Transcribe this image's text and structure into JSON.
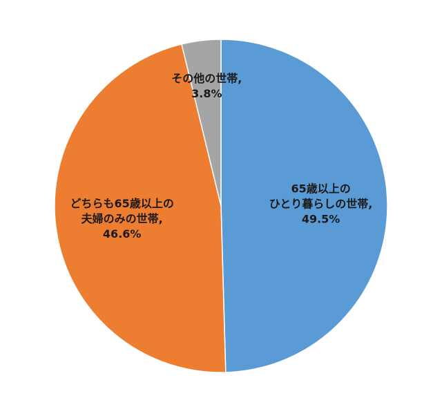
{
  "chart_data": {
    "type": "pie",
    "categories": [
      [
        "65歳以上の",
        "ひとり暮らしの世帯,"
      ],
      [
        "どちらも65歳以上の",
        "夫婦のみの世帯,"
      ],
      [
        "その他の世帯,"
      ]
    ],
    "values": [
      49.5,
      46.6,
      3.8
    ],
    "value_labels": [
      "49.5%",
      "46.6%",
      "3.8%"
    ],
    "colors": [
      "#5b9bd5",
      "#ed7d31",
      "#a5a5a5"
    ]
  }
}
